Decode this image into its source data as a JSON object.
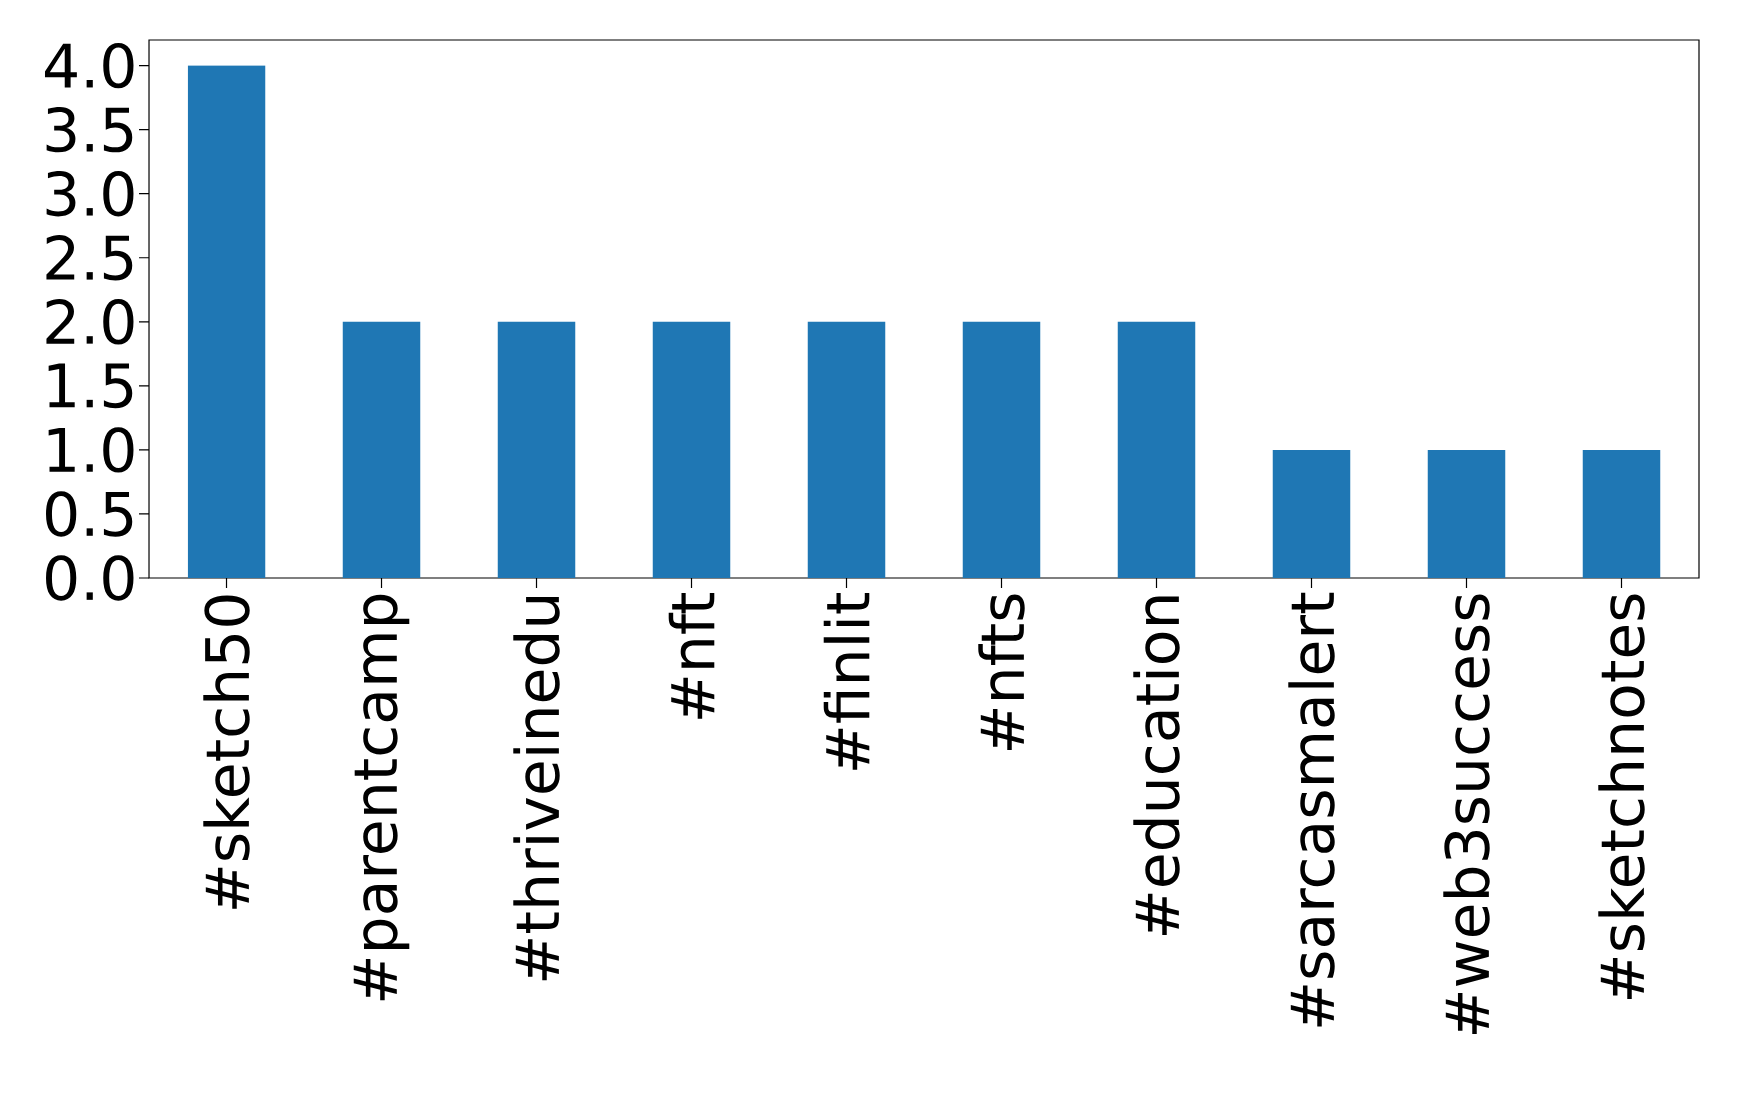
{
  "chart_data": {
    "type": "bar",
    "categories": [
      "#sketch50",
      "#parentcamp",
      "#thriveinedu",
      "#nft",
      "#finlit",
      "#nfts",
      "#education",
      "#sarcasmalert",
      "#web3success",
      "#sketchnotes"
    ],
    "values": [
      4,
      2,
      2,
      2,
      2,
      2,
      2,
      1,
      1,
      1
    ],
    "color": "#1f77b4",
    "ylim": [
      0,
      4.2
    ],
    "yticks": [
      {
        "value": 0,
        "label": "0.0"
      },
      {
        "value": 0.5,
        "label": "0.5"
      },
      {
        "value": 1,
        "label": "1.0"
      },
      {
        "value": 1.5,
        "label": "1.5"
      },
      {
        "value": 2,
        "label": "2.0"
      },
      {
        "value": 2.5,
        "label": "2.5"
      },
      {
        "value": 3,
        "label": "3.0"
      },
      {
        "value": 3.5,
        "label": "3.5"
      },
      {
        "value": 4,
        "label": "4.0"
      }
    ],
    "grid": false
  }
}
